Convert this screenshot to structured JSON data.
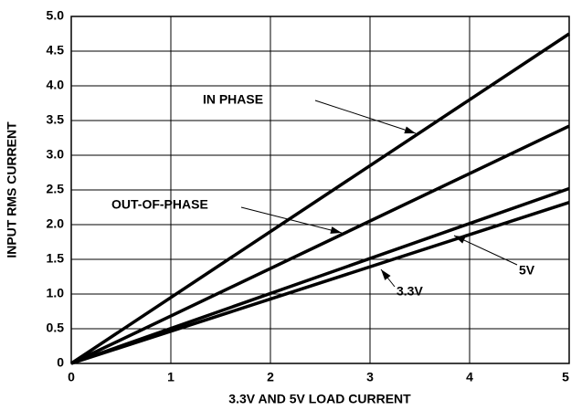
{
  "chart_data": {
    "type": "line",
    "xlabel": "3.3V AND 5V LOAD CURRENT",
    "ylabel": "INPUT RMS CURRENT",
    "x": [
      0,
      5
    ],
    "series": [
      {
        "name": "IN PHASE",
        "color": "#000000",
        "values": [
          0,
          4.75
        ]
      },
      {
        "name": "OUT-OF-PHASE",
        "color": "#000000",
        "values": [
          0,
          3.42
        ]
      },
      {
        "name": "5V",
        "color": "#000000",
        "values": [
          0,
          2.52
        ]
      },
      {
        "name": "3.3V",
        "color": "#000000",
        "values": [
          0,
          2.32
        ]
      }
    ],
    "xlim": [
      0,
      5
    ],
    "xticks": [
      0,
      1,
      2,
      3,
      4,
      5
    ],
    "ylim": [
      0,
      5
    ],
    "yticks": [
      0,
      0.5,
      {
        "value": 1,
        "label": "1.0"
      },
      1.5,
      {
        "value": 2,
        "label": "2.0"
      },
      2.5,
      {
        "value": 3,
        "label": "3.0"
      },
      3.5,
      {
        "value": 4,
        "label": "4.0"
      },
      4.5,
      {
        "value": 5,
        "label": "5.0"
      }
    ],
    "grid": true
  }
}
